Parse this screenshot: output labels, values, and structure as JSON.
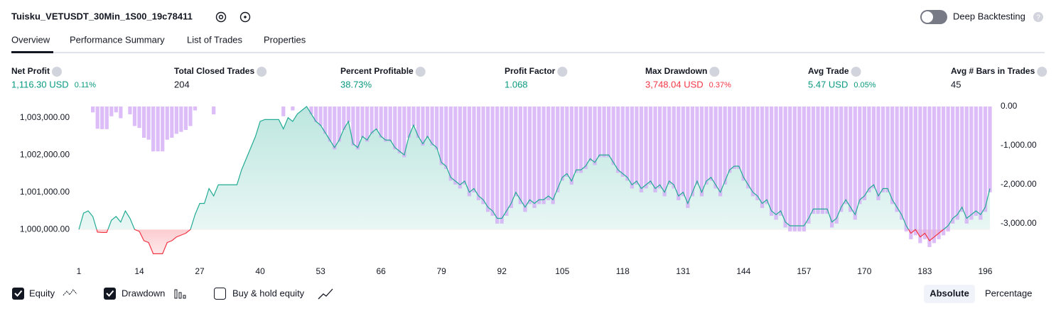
{
  "header": {
    "title": "Tuisku_VETUSDT_30Min_1S00_19c78411",
    "toggle_label": "Deep Backtesting"
  },
  "tabs": [
    "Overview",
    "Performance Summary",
    "List of Trades",
    "Properties"
  ],
  "metrics": [
    {
      "label": "Net Profit",
      "value": "1,116.30 USD",
      "percent": "0.11%",
      "color": "#089981"
    },
    {
      "label": "Total Closed Trades",
      "value": "204"
    },
    {
      "label": "Percent Profitable",
      "value": "38.73%",
      "color": "#089981"
    },
    {
      "label": "Profit Factor",
      "value": "1.068",
      "color": "#089981"
    },
    {
      "label": "Max Drawdown",
      "value": "3,748.04 USD",
      "percent": "0.37%",
      "color": "#f23645"
    },
    {
      "label": "Avg Trade",
      "value": "5.47 USD",
      "percent": "0.05%",
      "color": "#089981"
    },
    {
      "label": "Avg # Bars in Trades",
      "value": "45"
    }
  ],
  "chart_data": {
    "type": "line",
    "xlim": [
      1,
      197
    ],
    "xticks": [
      1,
      14,
      27,
      40,
      53,
      66,
      79,
      92,
      105,
      118,
      131,
      144,
      157,
      170,
      183,
      196
    ],
    "ylim": [
      999300,
      1003300
    ],
    "yticks": [
      {
        "value": 1000000,
        "label": "1,000,000.00"
      },
      {
        "value": 1001000,
        "label": "1,001,000.00"
      },
      {
        "value": 1002000,
        "label": "1,002,000.00"
      },
      {
        "value": 1003000,
        "label": "1,003,000.00"
      }
    ],
    "y2lim": [
      -3820,
      0
    ],
    "y2ticks": [
      {
        "value": 0,
        "label": "0.00"
      },
      {
        "value": -1000,
        "label": "-1,000.00"
      },
      {
        "value": -2000,
        "label": "-2,000.00"
      },
      {
        "value": -3000,
        "label": "-3,000.00"
      }
    ],
    "series": [
      {
        "name": "Equity",
        "color": "#22ab94",
        "loss_color": "#f23645",
        "values": [
          1000000,
          1000440,
          1000500,
          1000350,
          999930,
          999920,
          999920,
          1000250,
          1000350,
          1000200,
          1000500,
          1000300,
          1000000,
          999950,
          999700,
          999650,
          999350,
          999350,
          999350,
          999650,
          999700,
          999800,
          999850,
          999900,
          1000000,
          1000400,
          1000700,
          1000700,
          1001100,
          1000900,
          1001200,
          1001200,
          1001200,
          1001200,
          1001200,
          1001600,
          1001900,
          1002200,
          1002500,
          1002900,
          1002950,
          1002950,
          1002950,
          1002950,
          1002700,
          1003000,
          1002900,
          1003100,
          1003200,
          1003300,
          1003100,
          1002900,
          1002800,
          1002600,
          1002400,
          1002200,
          1002400,
          1002700,
          1002900,
          1002300,
          1002200,
          1002500,
          1002400,
          1002600,
          1002700,
          1002500,
          1002400,
          1002400,
          1002200,
          1002100,
          1002000,
          1002500,
          1002800,
          1002500,
          1002300,
          1002500,
          1002300,
          1002200,
          1001800,
          1001700,
          1001400,
          1001300,
          1001200,
          1001300,
          1001000,
          1001100,
          1000900,
          1000800,
          1000600,
          1000500,
          1000300,
          1000300,
          1000500,
          1000700,
          1001000,
          1000800,
          1000600,
          1000800,
          1000700,
          1000800,
          1000800,
          1000900,
          1000800,
          1001100,
          1001400,
          1001500,
          1001300,
          1001600,
          1001600,
          1001700,
          1001900,
          1001800,
          1002000,
          1002000,
          1002000,
          1001800,
          1001600,
          1001500,
          1001400,
          1001200,
          1001300,
          1001100,
          1001200,
          1001300,
          1001100,
          1001200,
          1001000,
          1001300,
          1001200,
          1000900,
          1001000,
          1000700,
          1001000,
          1001300,
          1001000,
          1001300,
          1001400,
          1001200,
          1001000,
          1001300,
          1001600,
          1001700,
          1001700,
          1001400,
          1001200,
          1001000,
          1000900,
          1000700,
          1000800,
          1000500,
          1000400,
          1000500,
          1000200,
          1000100,
          1000100,
          1000100,
          1000100,
          1000300,
          1000550,
          1000550,
          1000550,
          1000550,
          1000200,
          1000300,
          1000600,
          1000800,
          1000600,
          1000400,
          1000800,
          1000900,
          1001100,
          1001200,
          1000900,
          1001100,
          1001100,
          1000800,
          1000600,
          1000400,
          1000100,
          999900,
          1000000,
          999800,
          999900,
          999700,
          999800,
          999900,
          1000000,
          1000100,
          1000300,
          1000400,
          1000600,
          1000300,
          1000400,
          1000500,
          1000400,
          1000600,
          1001100
        ]
      },
      {
        "name": "Drawdown",
        "type": "bar",
        "axis": "y2",
        "color": "#d1a7f6",
        "values": [
          0,
          0,
          0,
          -150,
          -570,
          -580,
          -580,
          -250,
          -150,
          -300,
          0,
          -200,
          -500,
          -550,
          -800,
          -850,
          -1150,
          -1150,
          -1150,
          -850,
          -800,
          -700,
          -650,
          -600,
          -500,
          -100,
          0,
          0,
          0,
          -200,
          0,
          0,
          0,
          0,
          0,
          0,
          0,
          0,
          0,
          0,
          0,
          0,
          0,
          0,
          -250,
          0,
          -100,
          0,
          0,
          0,
          -200,
          -400,
          -500,
          -700,
          -900,
          -1100,
          -900,
          -600,
          -400,
          -1000,
          -1100,
          -800,
          -900,
          -700,
          -600,
          -800,
          -900,
          -900,
          -1100,
          -1200,
          -1300,
          -800,
          -500,
          -800,
          -1000,
          -800,
          -1000,
          -1100,
          -1500,
          -1600,
          -1900,
          -2000,
          -2100,
          -2000,
          -2300,
          -2200,
          -2400,
          -2500,
          -2700,
          -2800,
          -3000,
          -3000,
          -2800,
          -2600,
          -2300,
          -2500,
          -2700,
          -2500,
          -2600,
          -2500,
          -2500,
          -2400,
          -2500,
          -2200,
          -1900,
          -1800,
          -2000,
          -1700,
          -1700,
          -1600,
          -1400,
          -1500,
          -1300,
          -1300,
          -1300,
          -1500,
          -1700,
          -1800,
          -1900,
          -2100,
          -2000,
          -2200,
          -2100,
          -2000,
          -2200,
          -2100,
          -2300,
          -2000,
          -2100,
          -2400,
          -2300,
          -2600,
          -2300,
          -2000,
          -2300,
          -2000,
          -1900,
          -2100,
          -2300,
          -2000,
          -1700,
          -1600,
          -1600,
          -1900,
          -2100,
          -2300,
          -2400,
          -2600,
          -2500,
          -2800,
          -2900,
          -2800,
          -3100,
          -3200,
          -3200,
          -3200,
          -3200,
          -3000,
          -2750,
          -2750,
          -2750,
          -2750,
          -3100,
          -3000,
          -2700,
          -2500,
          -2700,
          -2900,
          -2500,
          -2400,
          -2200,
          -2100,
          -2400,
          -2200,
          -2200,
          -2500,
          -2700,
          -2900,
          -3200,
          -3400,
          -3300,
          -3500,
          -3400,
          -3600,
          -3500,
          -3400,
          -3300,
          -3200,
          -3000,
          -2900,
          -2700,
          -3000,
          -2900,
          -2800,
          -2900,
          -2700,
          -2200
        ]
      }
    ]
  },
  "toggles": [
    {
      "label": "Buy & hold equity"
    }
  ],
  "scale_modes": [
    "Absolute",
    "Percentage"
  ]
}
